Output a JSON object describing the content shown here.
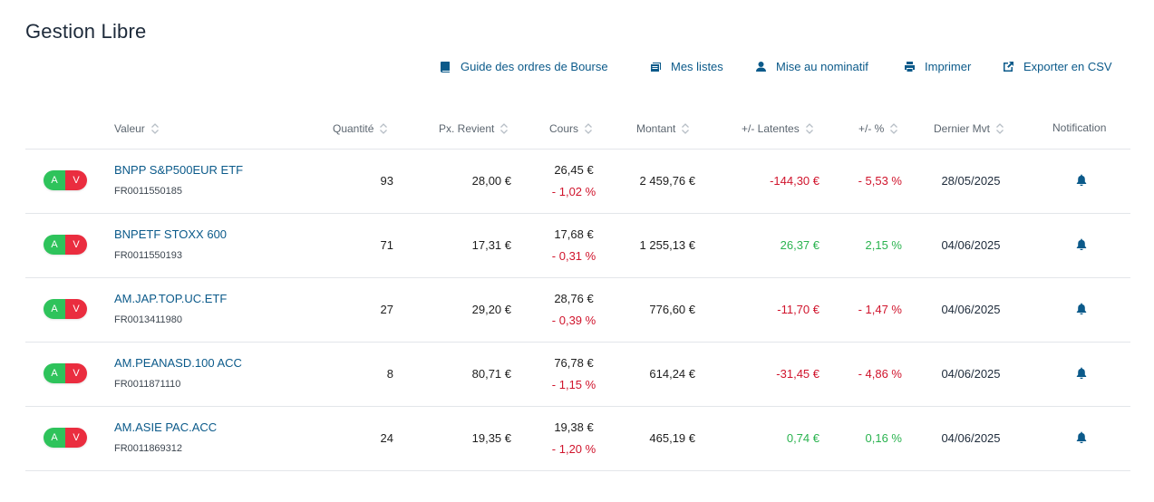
{
  "page": {
    "title": "Gestion Libre"
  },
  "toolbar": {
    "guide": "Guide des ordres de Bourse",
    "lists": "Mes listes",
    "nominatif": "Mise au nominatif",
    "print": "Imprimer",
    "export": "Exporter en CSV"
  },
  "table": {
    "headers": {
      "valeur": "Valeur",
      "quantite": "Quantité",
      "revient": "Px. Revient",
      "cours": "Cours",
      "montant": "Montant",
      "latentes": "+/- Latentes",
      "pct": "+/- %",
      "mvt": "Dernier Mvt",
      "notif": "Notification"
    },
    "buttons": {
      "buy": "A",
      "sell": "V"
    },
    "rows": [
      {
        "name": "BNPP S&P500EUR ETF",
        "isin": "FR0011550185",
        "qty": "93",
        "revient": "28,00 €",
        "cours": "26,45 €",
        "cours_var": "- 1,02 %",
        "montant": "2 459,76 €",
        "latentes": "-144,30 €",
        "pct": "- 5,53 %",
        "date": "28/05/2025",
        "trend": "neg"
      },
      {
        "name": "BNPETF STOXX 600",
        "isin": "FR0011550193",
        "qty": "71",
        "revient": "17,31 €",
        "cours": "17,68 €",
        "cours_var": "- 0,31 %",
        "montant": "1 255,13 €",
        "latentes": "26,37 €",
        "pct": "2,15 %",
        "date": "04/06/2025",
        "trend": "pos"
      },
      {
        "name": "AM.JAP.TOP.UC.ETF",
        "isin": "FR0013411980",
        "qty": "27",
        "revient": "29,20 €",
        "cours": "28,76 €",
        "cours_var": "- 0,39 %",
        "montant": "776,60 €",
        "latentes": "-11,70 €",
        "pct": "- 1,47 %",
        "date": "04/06/2025",
        "trend": "neg"
      },
      {
        "name": "AM.PEANASD.100 ACC",
        "isin": "FR0011871110",
        "qty": "8",
        "revient": "80,71 €",
        "cours": "76,78 €",
        "cours_var": "- 1,15 %",
        "montant": "614,24 €",
        "latentes": "-31,45 €",
        "pct": "- 4,86 %",
        "date": "04/06/2025",
        "trend": "neg"
      },
      {
        "name": "AM.ASIE PAC.ACC",
        "isin": "FR0011869312",
        "qty": "24",
        "revient": "19,35 €",
        "cours": "19,38 €",
        "cours_var": "- 1,20 %",
        "montant": "465,19 €",
        "latentes": "0,74 €",
        "pct": "0,16 %",
        "date": "04/06/2025",
        "trend": "pos"
      }
    ]
  },
  "colors": {
    "link": "#0b5a8a",
    "positive": "#2ab34f",
    "negative": "#d0142c",
    "buy": "#2ec35b",
    "sell": "#ea2d3f"
  },
  "icons": {
    "guide": "book-icon",
    "lists": "list-icon",
    "nominatif": "user-icon",
    "print": "printer-icon",
    "export": "external-link-icon",
    "notif": "bell-icon",
    "sort": "sort-icon"
  }
}
